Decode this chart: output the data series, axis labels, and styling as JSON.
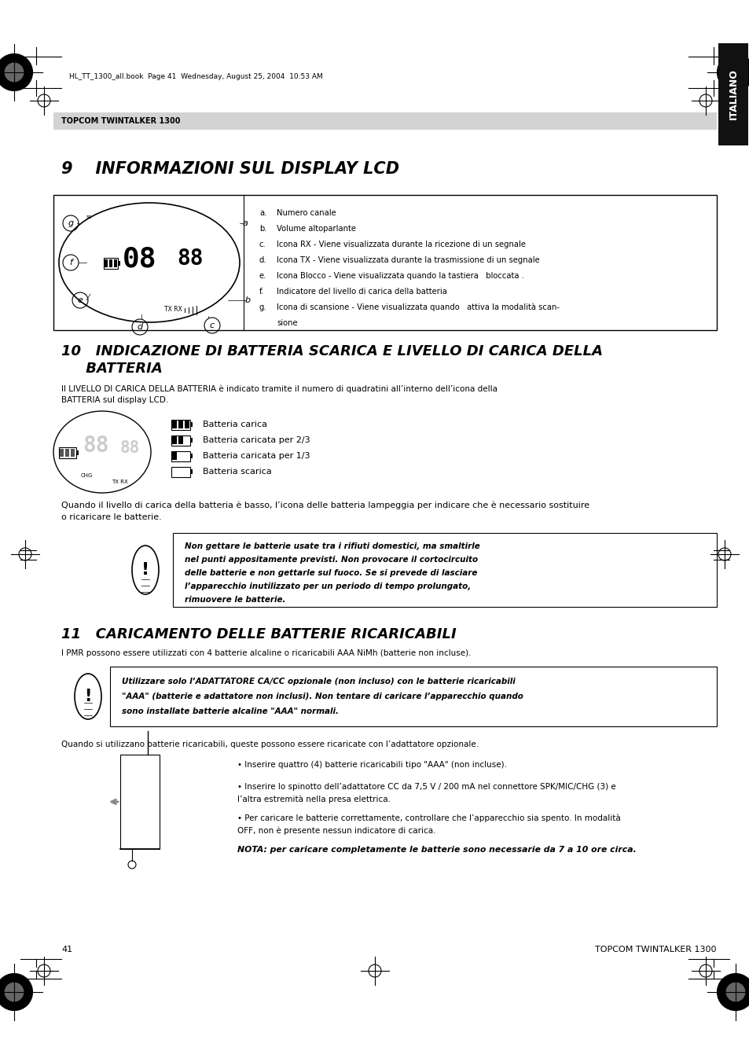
{
  "bg_color": "#ffffff",
  "page_width": 9.54,
  "page_height": 13.51,
  "header_bar_color": "#d3d3d3",
  "header_text": "TOPCOM TWINTALKER 1300",
  "sidebar_color": "#111111",
  "sidebar_text": "ITALIANO",
  "section9_title": "9    INFORMAZIONI SUL DISPLAY LCD",
  "section11_title": "11   CARICAMENTO DELLE BATTERIE RICARICABILI",
  "section10_body1": "Il LIVELLO DI CARICA DELLA BATTERIA è indicato tramite il numero di quadratini all’interno dell’icona della",
  "section10_body2": "BATTERIA sul display LCD.",
  "battery_labels": [
    "Batteria carica",
    "Batteria caricata per 2/3",
    "Batteria caricata per 1/3",
    "Batteria scarica"
  ],
  "battery_warning": "Quando il livello di carica della batteria è basso, l’icona delle batteria lampeggia per indicare che è necessario sostituire",
  "battery_warning2": "o ricaricare le batterie.",
  "caution_box1_lines": [
    "Non gettare le batterie usate tra i rifiuti domestici, ma smaltirle",
    "nel punti appositamente previsti. Non provocare il cortocircuito",
    "delle batterie e non gettarle sul fuoco. Se si prevede di lasciare",
    "l’apparecchio inutilizzato per un periodo di tempo prolungato,",
    "rimuovere le batterie."
  ],
  "section11_body": "I PMR possono essere utilizzati con 4 batterie alcaline o ricaricabili AAA NiMh (batterie non incluse).",
  "caution_box2_lines": [
    "Utilizzare solo l’ADATTATORE CA/CC opzionale (non incluso) con le batterie ricaricabili",
    "\"AAA\" (batterie e adattatore non inclusi). Non tentare di caricare l’apparecchio quando",
    "sono installate batterie alcaline \"AAA\" normali."
  ],
  "section11_instructions_intro": "Quando si utilizzano batterie ricaricabili, queste possono essere ricaricate con l’adattatore opzionale.",
  "instr1": "• Inserire quattro (4) batterie ricaricabili tipo \"AAA\" (non incluse).",
  "instr2a": "• Inserire lo spinotto dell’adattatore CC da 7,5 V / 200 mA nel connettore SPK/MIC/CHG (3) e",
  "instr2b": "l’altra estremità nella presa elettrica.",
  "instr3a": "• Per caricare le batterie correttamente, controllare che l’apparecchio sia spento. In modalità",
  "instr3b": "OFF, non è presente nessun indicatore di carica.",
  "nota": "NOTA: per caricare completamente le batterie sono necessarie da 7 a 10 ore circa.",
  "lcd_labels": [
    "a.\tNumero canale",
    "b.\tVolume altoparlante",
    "c.\tIcona RX - Viene visualizzata durante la ricezione di un segnale",
    "d.\tIcona TX - Viene visualizzata durante la trasmissione di un segnale",
    "e.\tIcona Blocco - Viene visualizzata quando la tastiera   bloccata .",
    "f.\tIndicatore del livello di carica della batteria",
    "g.\tIcona di scansione - Viene visualizzata quando   attiva la modalità scan-",
    "\tsione"
  ],
  "file_info": "HL_TT_1300_all.book  Page 41  Wednesday, August 25, 2004  10:53 AM",
  "page_num": "41",
  "footer_right": "TOPCOM TWINTALKER 1300"
}
